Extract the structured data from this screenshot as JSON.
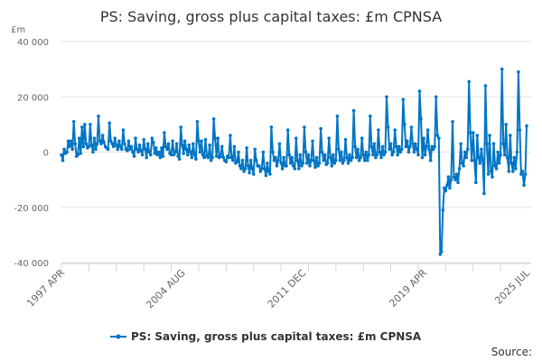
{
  "chart_data": {
    "type": "line",
    "title": "PS: Saving, gross plus capital taxes: £m CPNSA",
    "ylabel": "£m",
    "xlabel": "",
    "ylim": [
      -40000,
      40000
    ],
    "yticks": [
      40000,
      20000,
      0,
      -20000,
      -40000
    ],
    "ytick_labels": [
      "40 000",
      "20 000",
      "0",
      "-20 000",
      "-40 000"
    ],
    "x_start": "1997 APR",
    "x_end": "2025 JUL",
    "frequency": "monthly",
    "xtick_labels": [
      "1997 APR",
      "2004 AUG",
      "2011 DEC",
      "2019 APR",
      "2025 JUL"
    ],
    "grid": true,
    "color": "#0075c4",
    "legend_placement": "bottom",
    "source_label": "Source:",
    "series": [
      {
        "name": "PS: Saving, gross plus capital taxes: £m CPNSA",
        "values": [
          -1000,
          -3000,
          1000,
          -500,
          0,
          4000,
          2000,
          4000,
          1000,
          11000,
          3000,
          -1500,
          -1000,
          5000,
          -500,
          9000,
          2000,
          10000,
          3000,
          1500,
          2000,
          10000,
          2500,
          0,
          5000,
          1000,
          3000,
          13000,
          4000,
          3000,
          6000,
          3500,
          2000,
          1500,
          1000,
          10500,
          4000,
          3000,
          2000,
          5000,
          2500,
          1000,
          4000,
          2000,
          1000,
          8000,
          3000,
          1000,
          500,
          4000,
          1000,
          2000,
          0,
          -1500,
          5000,
          1000,
          0,
          2500,
          500,
          -1000,
          4500,
          1000,
          -2000,
          3000,
          0,
          -1000,
          5000,
          3500,
          -500,
          1500,
          -1000,
          0,
          -2000,
          1500,
          -1500,
          7000,
          2000,
          1000,
          3000,
          -500,
          -1000,
          4000,
          -1000,
          0,
          3000,
          -1500,
          -2500,
          9000,
          2500,
          -500,
          4000,
          1000,
          -1000,
          2500,
          0,
          -2000,
          3000,
          -1000,
          -2500,
          11000,
          4000,
          0,
          4000,
          -1000,
          -2000,
          4500,
          -1500,
          -2000,
          2500,
          -3000,
          -2000,
          12000,
          5000,
          -1500,
          5000,
          -2000,
          -1500,
          2000,
          -2000,
          -3000,
          -3500,
          -1500,
          -2000,
          6000,
          -2000,
          -3000,
          2000,
          -4000,
          -3500,
          0,
          -5000,
          -6000,
          -3000,
          -7000,
          -6000,
          1500,
          -5000,
          -7500,
          -3000,
          -6000,
          -8000,
          1000,
          -3000,
          -5000,
          -5000,
          -7000,
          -6000,
          0,
          -6000,
          -8500,
          -4000,
          -7000,
          -8000,
          9000,
          0,
          -3000,
          -2000,
          -5000,
          -3000,
          3000,
          -4000,
          -6000,
          -2000,
          -5000,
          -5000,
          8000,
          -1000,
          -4000,
          -2000,
          -5000,
          -6000,
          5000,
          -3000,
          -6000,
          -1000,
          -5000,
          -4000,
          9000,
          0,
          -4000,
          -1000,
          -5000,
          -3000,
          4000,
          -3000,
          -5500,
          -2000,
          -5000,
          -4000,
          8500,
          0,
          -3000,
          -1000,
          -4500,
          -4000,
          5000,
          -2000,
          -5000,
          -1000,
          -4000,
          -3000,
          13000,
          1000,
          -3000,
          0,
          -4000,
          -3000,
          4500,
          -2000,
          -4000,
          -1000,
          -3000,
          -2000,
          15000,
          2000,
          -2000,
          1000,
          -3000,
          -2000,
          5000,
          -1000,
          -3000,
          0,
          -3000,
          -1000,
          13000,
          2000,
          -1000,
          3000,
          -2000,
          -1000,
          8000,
          0,
          -2000,
          2000,
          -1000,
          0,
          20000,
          9000,
          1000,
          3000,
          -1000,
          0,
          8000,
          2000,
          -1000,
          2000,
          0,
          1000,
          19000,
          10000,
          2000,
          4000,
          0,
          2000,
          9000,
          3000,
          0,
          3000,
          1000,
          -1000,
          22000,
          12000,
          -2000,
          5000,
          -1000,
          2000,
          8000,
          1000,
          -3000,
          2000,
          1000,
          2000,
          20000,
          6000,
          5000,
          -37000,
          -36000,
          -21000,
          -13000,
          -14000,
          -12000,
          -9000,
          -13000,
          -10000,
          11000,
          -9000,
          -10000,
          -8000,
          -11000,
          -6000,
          3000,
          -4000,
          -5000,
          0,
          -2000,
          1000,
          25500,
          7000,
          -3000,
          7000,
          -3000,
          -11000,
          6000,
          -2000,
          -4000,
          1000,
          -3000,
          -15000,
          24000,
          3000,
          -8000,
          6000,
          -7000,
          -9000,
          3000,
          -5000,
          -6000,
          0,
          -4000,
          -1000,
          30000,
          3000,
          -1000,
          10000,
          -2000,
          -7000,
          6000,
          -4000,
          -7000,
          -2000,
          -6000,
          0,
          29000,
          8000,
          -8000,
          -7000,
          -12000,
          -8000,
          9500
        ]
      }
    ]
  }
}
